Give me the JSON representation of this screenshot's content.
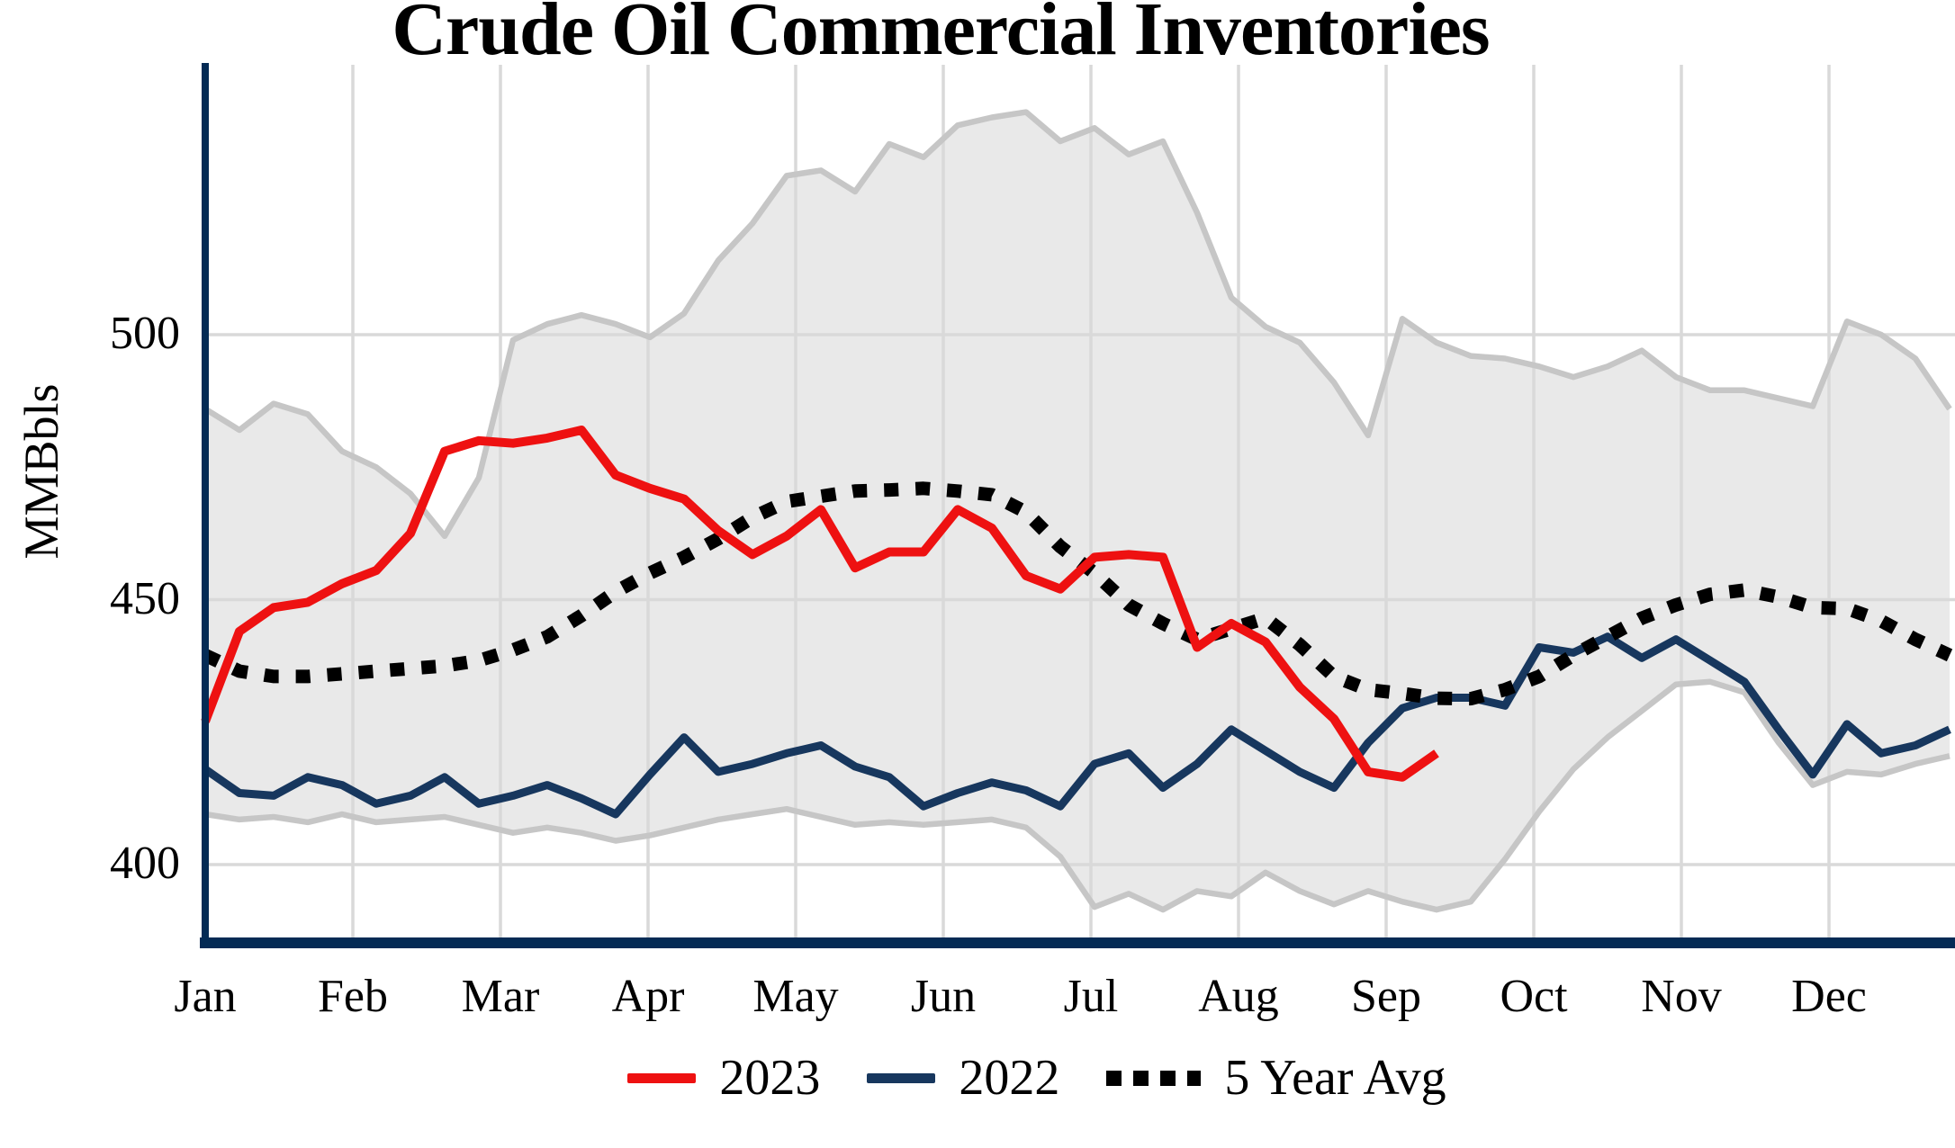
{
  "title": "Crude Oil Commercial Inventories",
  "y_axis": {
    "label": "MMBbls",
    "ticks": [
      400,
      450,
      500
    ]
  },
  "x_axis": {
    "months": [
      "Jan",
      "Feb",
      "Mar",
      "Apr",
      "May",
      "Jun",
      "Jul",
      "Aug",
      "Sep",
      "Oct",
      "Nov",
      "Dec"
    ]
  },
  "legend": [
    {
      "label": "2023",
      "color": "#ee1111",
      "style": "solid"
    },
    {
      "label": "2022",
      "color": "#17375e",
      "style": "solid"
    },
    {
      "label": "5 Year Avg",
      "color": "#000000",
      "style": "dotted"
    }
  ],
  "colors": {
    "red": "#ee1111",
    "navy": "#17375e",
    "avg": "#000000",
    "band_fill": "#e9e9e9",
    "band_edge": "#c6c6c6",
    "grid": "#d9d9d9",
    "axis": "#042b55"
  },
  "chart_data": {
    "type": "line",
    "title": "Crude Oil Commercial Inventories",
    "ylabel": "MMBbls",
    "xlabel": "",
    "x_unit": "week",
    "points_per_year": 52,
    "categories": [
      "Jan",
      "Feb",
      "Mar",
      "Apr",
      "May",
      "Jun",
      "Jul",
      "Aug",
      "Sep",
      "Oct",
      "Nov",
      "Dec"
    ],
    "ylim": [
      385,
      552
    ],
    "yticks": [
      400,
      450,
      500
    ],
    "grid": true,
    "legend_position": "bottom",
    "series": [
      {
        "name": "2023",
        "style": "solid",
        "color": "#ee1111",
        "values": [
          427,
          444,
          448.5,
          449.5,
          453,
          455.5,
          462.5,
          478,
          480,
          479.5,
          480.5,
          482,
          473.5,
          471,
          469,
          463,
          458.5,
          462,
          467,
          456,
          459,
          459,
          467,
          463.5,
          454.5,
          452,
          458,
          458.5,
          458,
          441,
          445.5,
          442,
          433.5,
          427.5,
          417.5,
          416.5,
          421
        ]
      },
      {
        "name": "2022",
        "style": "solid",
        "color": "#17375e",
        "values": [
          418,
          413.5,
          413,
          416.5,
          415,
          411.5,
          413,
          416.5,
          411.5,
          413,
          415,
          412.5,
          409.5,
          417,
          424,
          417.5,
          419,
          421,
          422.5,
          418.5,
          416.5,
          411,
          413.5,
          415.5,
          414,
          411,
          419,
          421,
          414.5,
          419,
          425.5,
          421.5,
          417.5,
          414.5,
          423,
          429.5,
          431.5,
          431.5,
          430,
          441,
          440,
          443,
          439,
          442.5,
          438.5,
          434.5,
          425.5,
          417,
          426.5,
          421,
          422.5,
          425.5
        ]
      },
      {
        "name": "5 Year Avg",
        "style": "dotted",
        "color": "#000000",
        "values": [
          439.5,
          436.5,
          435.5,
          435.5,
          436,
          436.5,
          437,
          437.5,
          438.5,
          440.5,
          443,
          447,
          451.5,
          455,
          458,
          461.5,
          465.5,
          468.5,
          469.5,
          470.5,
          470.7,
          471,
          470.5,
          469.8,
          466.5,
          460,
          455,
          449,
          445.5,
          442.5,
          444.5,
          446.5,
          441.5,
          435.5,
          433,
          432.3,
          431.4,
          431.3,
          433,
          435.5,
          439.5,
          443,
          446.5,
          449,
          451,
          451.8,
          450.5,
          448.5,
          448.3,
          446,
          442.5,
          439.5
        ]
      }
    ],
    "band": {
      "name": "5 Year Range",
      "fill": "#e9e9e9",
      "edge": "#c6c6c6",
      "upper": [
        486,
        482,
        487,
        485,
        478,
        475,
        470,
        462,
        473,
        499,
        502,
        503.7,
        502,
        499.5,
        504,
        514,
        521,
        530,
        531,
        527,
        536,
        533.5,
        539.5,
        541,
        542,
        536.5,
        539,
        534,
        536.5,
        523,
        507,
        501.5,
        498.5,
        491,
        481,
        503,
        498.5,
        496,
        495.5,
        494,
        492,
        494,
        497,
        492,
        489.5,
        489.5,
        488,
        486.5,
        502.5,
        500,
        495.5,
        486
      ],
      "lower": [
        409.5,
        408.5,
        409,
        408,
        409.5,
        408,
        408.5,
        409,
        407.5,
        406,
        407,
        406,
        404.5,
        405.5,
        407,
        408.5,
        409.5,
        410.5,
        409,
        407.5,
        408,
        407.5,
        408,
        408.5,
        407,
        401.5,
        392,
        394.5,
        391.5,
        395,
        394,
        398.5,
        395,
        392.5,
        395,
        393,
        391.5,
        393,
        401,
        410,
        418,
        424,
        429,
        434,
        434.5,
        432.5,
        423,
        415,
        417.5,
        417,
        419,
        420.5
      ]
    }
  }
}
